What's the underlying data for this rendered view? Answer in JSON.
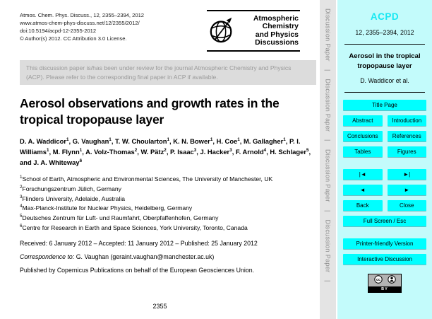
{
  "colors": {
    "panel_bg": "#c3fbfb",
    "button_bg": "#00ffff",
    "journal_accent": "#17e8f2",
    "banner_bg": "#dcdcdc",
    "banner_text": "#9a9a9a",
    "spine_bg": "#e4e4e4",
    "spine_text": "#8d8d8d"
  },
  "header": {
    "citation_lines": [
      "Atmos. Chem. Phys. Discuss., 12, 2355–2394, 2012",
      "www.atmos-chem-phys-discuss.net/12/2355/2012/",
      "doi:10.5194/acpd-12-2355-2012",
      "© Author(s) 2012. CC Attribution 3.0 License."
    ],
    "logo": {
      "title_lines": [
        "Atmospheric",
        "Chemistry",
        "and Physics",
        "Discussions"
      ]
    }
  },
  "review_notice": "This discussion paper is/has been under review for the journal Atmospheric Chemistry and Physics (ACP). Please refer to the corresponding final paper in ACP if available.",
  "article": {
    "title": "Aerosol observations and growth rates in the tropical tropopause layer",
    "authors": [
      {
        "name": "D. A. Waddicor",
        "aff": "1"
      },
      {
        "name": "G. Vaughan",
        "aff": "1"
      },
      {
        "name": "T. W. Choularton",
        "aff": "1"
      },
      {
        "name": "K. N. Bower",
        "aff": "1"
      },
      {
        "name": "H. Coe",
        "aff": "1"
      },
      {
        "name": "M. Gallagher",
        "aff": "1"
      },
      {
        "name": "P. I. Williams",
        "aff": "1"
      },
      {
        "name": "M. Flynn",
        "aff": "1"
      },
      {
        "name": "A. Volz-Thomas",
        "aff": "2"
      },
      {
        "name": "W. Pätz",
        "aff": "2"
      },
      {
        "name": "P. Isaac",
        "aff": "3"
      },
      {
        "name": "J. Hacker",
        "aff": "3"
      },
      {
        "name": "F. Arnold",
        "aff": "4"
      },
      {
        "name": "H. Schlager",
        "aff": "5"
      },
      {
        "name": "J. A. Whiteway",
        "aff": "6"
      }
    ],
    "affiliations": [
      {
        "num": "1",
        "text": "School of Earth, Atmospheric and Environmental Sciences, The University of Manchester, UK"
      },
      {
        "num": "2",
        "text": "Forschungszentrum Jülich, Germany"
      },
      {
        "num": "3",
        "text": "Flinders University, Adelaide, Australia"
      },
      {
        "num": "4",
        "text": "Max-Planck-Institute for Nuclear Physics, Heidelberg, Germany"
      },
      {
        "num": "5",
        "text": "Deutsches Zentrum für Luft- und Raumfahrt, Oberpfaffenhofen, Germany"
      },
      {
        "num": "6",
        "text": "Centre for Research in Earth and Space Sciences, York University, Toronto, Canada"
      }
    ],
    "dates": "Received: 6 January 2012 – Accepted: 11 January 2012 – Published: 25 January 2012",
    "correspondence_label": "Correspondence to:",
    "correspondence_value": "G. Vaughan (geraint.vaughan@manchester.ac.uk)",
    "publisher": "Published by Copernicus Publications on behalf of the European Geosciences Union.",
    "page_number": "2355"
  },
  "spine": {
    "label": "Discussion Paper",
    "separator": "|",
    "count": 4
  },
  "sidebar": {
    "journal": "ACPD",
    "citation": "12, 2355–2394, 2012",
    "short_title": "Aerosol in the tropical tropopause layer",
    "short_authors": "D. Waddicor et al.",
    "button_rows": [
      {
        "cells": [
          {
            "label": "Title Page",
            "name": "title-page-button"
          }
        ]
      },
      {
        "cells": [
          {
            "label": "Abstract",
            "name": "abstract-button"
          },
          {
            "label": "Introduction",
            "name": "introduction-button"
          }
        ]
      },
      {
        "cells": [
          {
            "label": "Conclusions",
            "name": "conclusions-button"
          },
          {
            "label": "References",
            "name": "references-button"
          }
        ]
      },
      {
        "cells": [
          {
            "label": "Tables",
            "name": "tables-button"
          },
          {
            "label": "Figures",
            "name": "figures-button"
          }
        ]
      },
      {
        "gap_before": true,
        "cells": [
          {
            "label": "◄",
            "name": "nav-first-button"
          },
          {
            "label": "►",
            "name": "nav-last-button"
          }
        ]
      },
      {
        "cells": [
          {
            "label": "◄",
            "name": "nav-prev-button"
          },
          {
            "label": "►",
            "name": "nav-next-button"
          }
        ]
      },
      {
        "cells": [
          {
            "label": "Back",
            "name": "back-button"
          },
          {
            "label": "Close",
            "name": "close-button"
          }
        ]
      },
      {
        "cells": [
          {
            "label": "Full Screen / Esc",
            "name": "fullscreen-button"
          }
        ]
      },
      {
        "gap_before": true,
        "cells": [
          {
            "label": "Printer-friendly Version",
            "name": "printer-version-button"
          }
        ]
      },
      {
        "cells": [
          {
            "label": "Interactive Discussion",
            "name": "interactive-discussion-button"
          }
        ]
      }
    ],
    "nav_glyphs": {
      "first": "|◄",
      "last": "►|",
      "prev": "◄",
      "next": "►"
    },
    "license_label": "BY"
  }
}
